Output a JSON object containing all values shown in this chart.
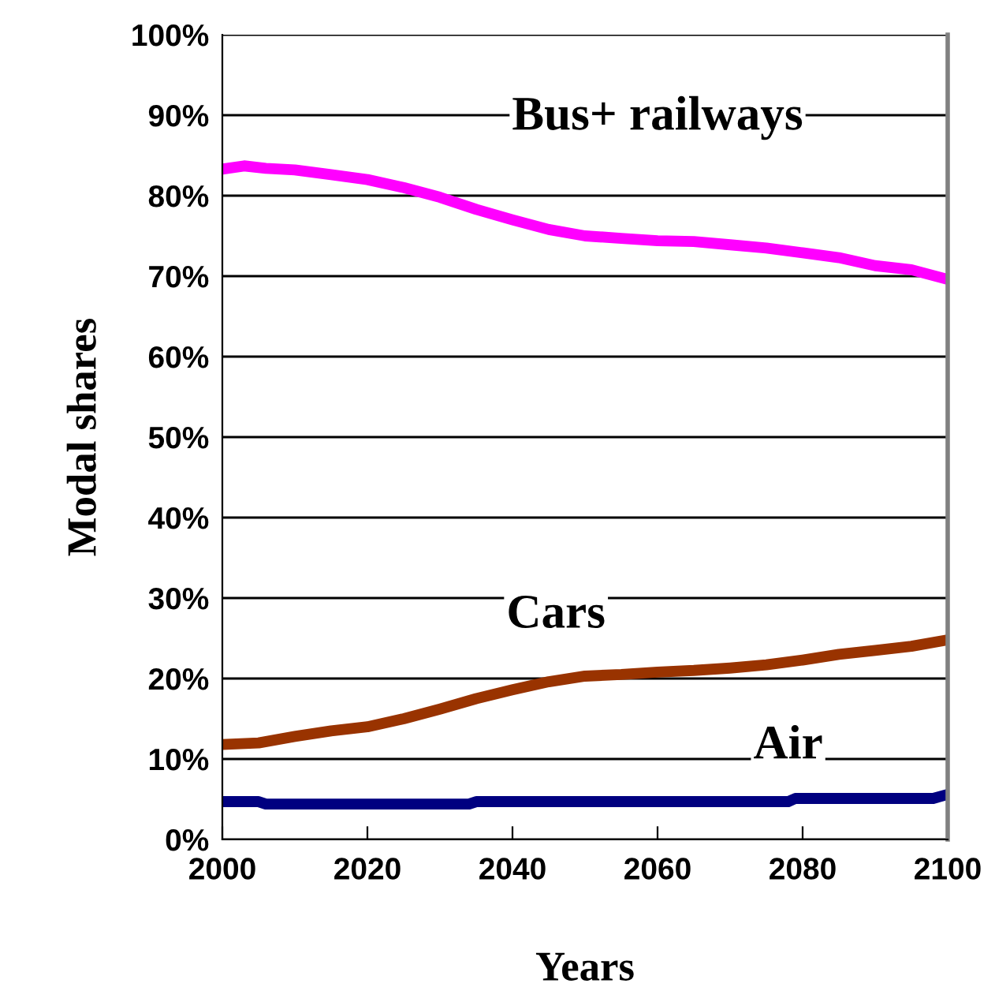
{
  "chart_data": {
    "type": "line",
    "xlabel": "Years",
    "ylabel": "Modal shares",
    "xlim": [
      2000,
      2100
    ],
    "xticks": [
      2000,
      2020,
      2040,
      2060,
      2080,
      2100
    ],
    "ylim": [
      0,
      100
    ],
    "yticks": [
      {
        "value": 0,
        "label": "0%"
      },
      {
        "value": 10,
        "label": "10%"
      },
      {
        "value": 20,
        "label": "20%"
      },
      {
        "value": 30,
        "label": "30%"
      },
      {
        "value": 40,
        "label": "40%"
      },
      {
        "value": 50,
        "label": "50%"
      },
      {
        "value": 60,
        "label": "60%"
      },
      {
        "value": 70,
        "label": "70%"
      },
      {
        "value": 80,
        "label": "80%"
      },
      {
        "value": 90,
        "label": "90%"
      },
      {
        "value": 100,
        "label": "100%"
      }
    ],
    "grid": "y",
    "legend": false,
    "marker": "none",
    "line_style": "solid",
    "series": [
      {
        "name": "Bus+ railways",
        "color": "#ff00ff",
        "x": [
          2000,
          2003,
          2006,
          2010,
          2015,
          2020,
          2025,
          2030,
          2035,
          2040,
          2045,
          2050,
          2055,
          2060,
          2065,
          2070,
          2075,
          2080,
          2085,
          2090,
          2095,
          2100
        ],
        "values": [
          83.3,
          83.7,
          83.4,
          83.2,
          82.6,
          82,
          81,
          79.8,
          78.3,
          77,
          75.8,
          75,
          74.7,
          74.4,
          74.3,
          73.9,
          73.5,
          72.9,
          72.3,
          71.3,
          70.8,
          69.6
        ]
      },
      {
        "name": "Cars",
        "color": "#993300",
        "x": [
          2000,
          2005,
          2010,
          2015,
          2020,
          2025,
          2030,
          2035,
          2040,
          2045,
          2050,
          2055,
          2060,
          2065,
          2070,
          2075,
          2080,
          2085,
          2090,
          2095,
          2100
        ],
        "values": [
          11.8,
          12,
          12.8,
          13.5,
          14,
          15,
          16.2,
          17.5,
          18.6,
          19.6,
          20.3,
          20.5,
          20.8,
          21,
          21.3,
          21.7,
          22.3,
          23,
          23.5,
          24,
          24.8
        ]
      },
      {
        "name": "Air",
        "color": "#000080",
        "x": [
          2000,
          2005,
          2006,
          2034,
          2035,
          2078,
          2079,
          2098,
          2100
        ],
        "values": [
          4.7,
          4.7,
          4.4,
          4.4,
          4.7,
          4.7,
          5.1,
          5.1,
          5.6
        ]
      }
    ]
  }
}
